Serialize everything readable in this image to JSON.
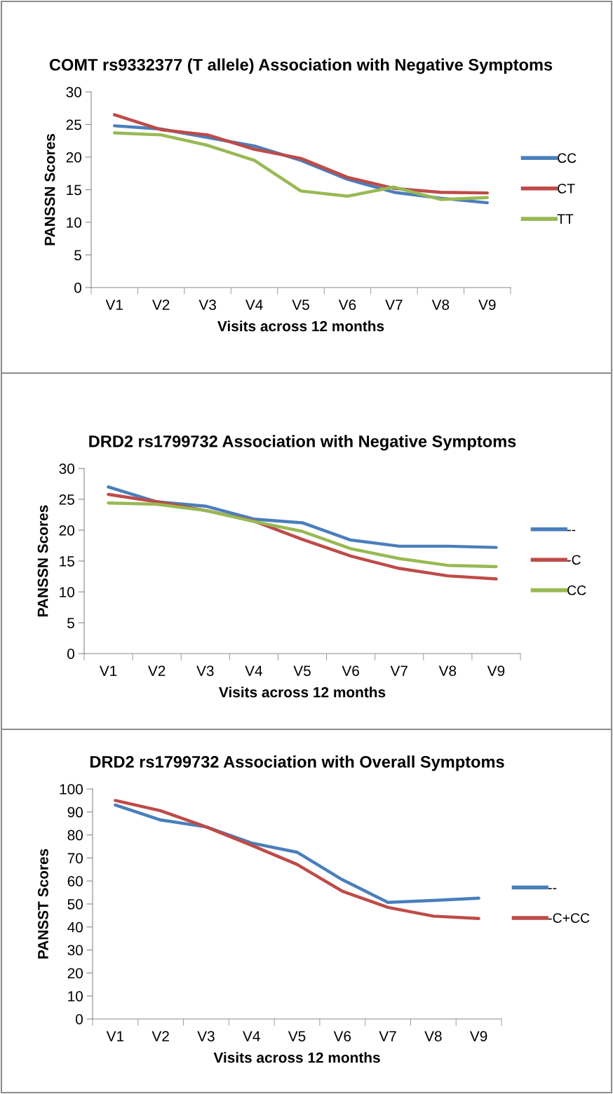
{
  "chart_data": [
    {
      "type": "line",
      "title": "COMT rs9332377 (T allele) Association with Negative Symptoms",
      "xlabel": "Visits across 12 months",
      "ylabel": "PANSSN Scores",
      "categories": [
        "V1",
        "V2",
        "V3",
        "V4",
        "V5",
        "V6",
        "V7",
        "V8",
        "V9"
      ],
      "ylim": [
        0,
        30
      ],
      "yticks": [
        0,
        5,
        10,
        15,
        20,
        25,
        30
      ],
      "legend": "right",
      "grid": false,
      "marker": "none",
      "line_style": "solid",
      "series": [
        {
          "name": "CC",
          "color": "#4a7ebb",
          "values": [
            24.8,
            24.3,
            23.0,
            21.7,
            19.5,
            16.6,
            14.6,
            13.7,
            13.0
          ]
        },
        {
          "name": "CT",
          "color": "#be4b48",
          "values": [
            26.5,
            24.2,
            23.4,
            21.2,
            19.8,
            16.9,
            15.2,
            14.6,
            14.5
          ]
        },
        {
          "name": "TT",
          "color": "#98b954",
          "values": [
            23.7,
            23.4,
            21.8,
            19.5,
            14.8,
            14.0,
            15.4,
            13.5,
            13.8
          ]
        }
      ]
    },
    {
      "type": "line",
      "title": "DRD2 rs1799732 Association with Negative Symptoms",
      "xlabel": "Visits across 12 months",
      "ylabel": "PANSSN Scores",
      "categories": [
        "V1",
        "V2",
        "V3",
        "V4",
        "V5",
        "V6",
        "V7",
        "V8",
        "V9"
      ],
      "ylim": [
        0,
        30
      ],
      "yticks": [
        0,
        5,
        10,
        15,
        20,
        25,
        30
      ],
      "legend": "right",
      "grid": false,
      "marker": "none",
      "line_style": "solid",
      "series": [
        {
          "name": "--",
          "color": "#4a7ebb",
          "values": [
            27.0,
            24.6,
            23.9,
            21.8,
            21.2,
            18.4,
            17.4,
            17.4,
            17.2
          ]
        },
        {
          "name": "-C",
          "color": "#be4b48",
          "values": [
            25.8,
            24.6,
            23.2,
            21.5,
            18.5,
            15.8,
            13.8,
            12.6,
            12.1
          ]
        },
        {
          "name": "CC",
          "color": "#98b954",
          "values": [
            24.4,
            24.2,
            23.2,
            21.4,
            19.8,
            17.0,
            15.4,
            14.3,
            14.1
          ]
        }
      ]
    },
    {
      "type": "line",
      "title": "DRD2 rs1799732 Association with Overall Symptoms",
      "xlabel": "Visits across 12 months",
      "ylabel": "PANSST Scores",
      "categories": [
        "V1",
        "V2",
        "V3",
        "V4",
        "V5",
        "V6",
        "V7",
        "V8",
        "V9"
      ],
      "ylim": [
        0,
        100
      ],
      "yticks": [
        0,
        10,
        20,
        30,
        40,
        50,
        60,
        70,
        80,
        90,
        100
      ],
      "legend": "right",
      "grid": false,
      "marker": "none",
      "line_style": "solid",
      "series": [
        {
          "name": "--",
          "color": "#4a7ebb",
          "values": [
            93,
            86.5,
            83.5,
            76.5,
            72.5,
            60.5,
            50.7,
            51.5,
            52.5
          ]
        },
        {
          "name": "-C+CC",
          "color": "#be4b48",
          "values": [
            95,
            90.5,
            83.5,
            75.5,
            67.2,
            55.5,
            48.5,
            44.7,
            43.7
          ]
        }
      ]
    }
  ]
}
